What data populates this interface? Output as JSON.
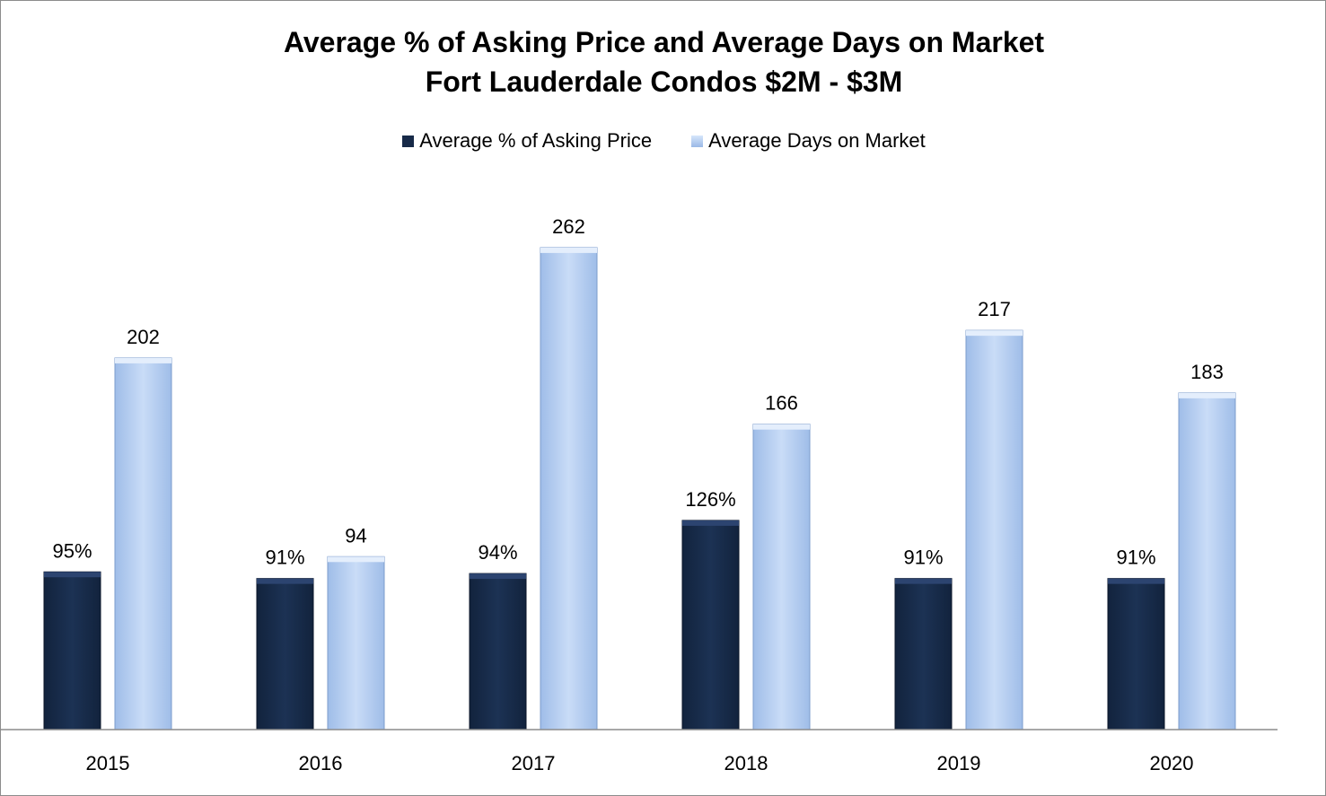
{
  "chart_data": {
    "type": "bar",
    "title": "Average % of Asking Price and Average Days on Market",
    "subtitle": "Fort Lauderdale Condos $2M - $3M",
    "xlabel": "",
    "ylabel": "",
    "legend_position": "top-center",
    "grid": false,
    "categories": [
      "2015",
      "2016",
      "2017",
      "2018",
      "2019",
      "2020"
    ],
    "series": [
      {
        "name": "Average % of Asking Price",
        "color": "#172a48",
        "values": [
          95,
          91,
          94,
          126,
          91,
          91
        ],
        "labels": [
          "95%",
          "91%",
          "94%",
          "126%",
          "91%",
          "91%"
        ]
      },
      {
        "name": "Average Days on Market",
        "color": "#b3cdf1",
        "values": [
          202,
          94,
          262,
          166,
          217,
          183
        ],
        "labels": [
          "202",
          "94",
          "262",
          "166",
          "217",
          "183"
        ]
      }
    ],
    "ylim": [
      0,
      270
    ]
  }
}
